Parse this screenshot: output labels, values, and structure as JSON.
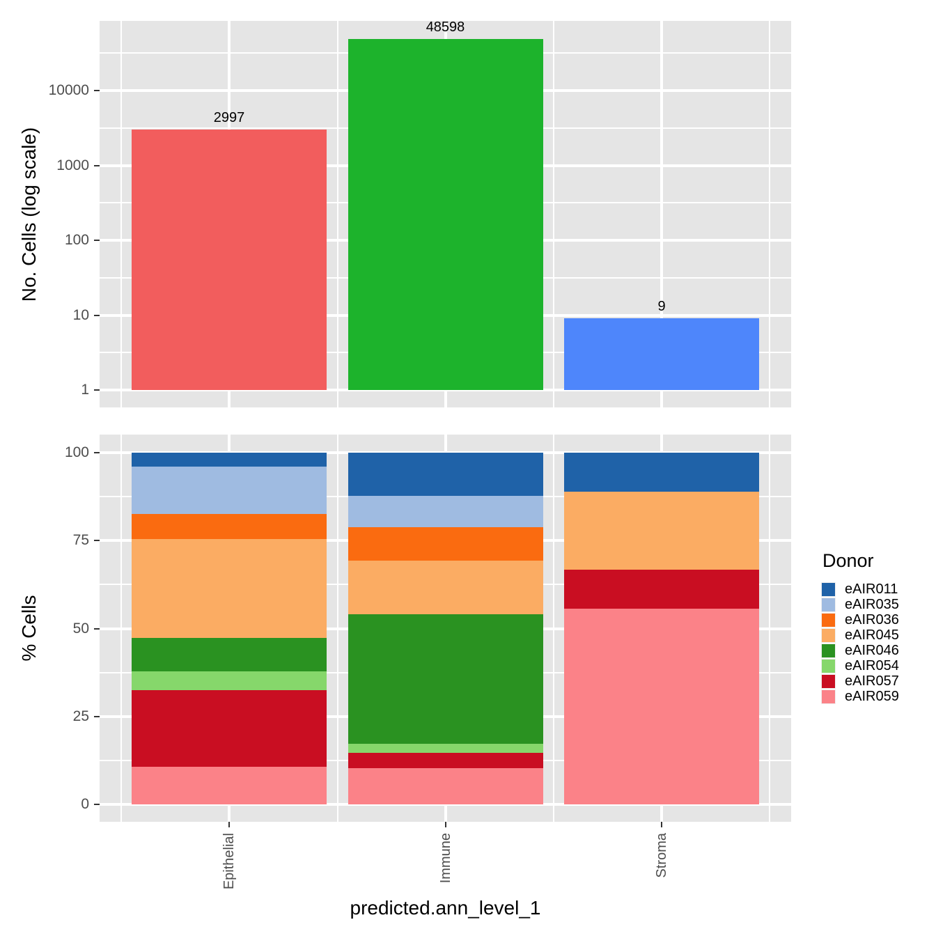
{
  "style": {
    "panel_background": "#E5E5E5",
    "gridline_color": "#FFFFFF",
    "tick_text_color": "#4D4D4D",
    "tick_mark_color": "#333333"
  },
  "chart_data": [
    {
      "type": "bar",
      "title": "",
      "xlabel": "",
      "ylabel": "No. Cells (log scale)",
      "scale": "log10",
      "grid": true,
      "categories": [
        "Epithelial",
        "Immune",
        "Stroma"
      ],
      "values": [
        2997,
        48598,
        9
      ],
      "value_labels": [
        "2997",
        "48598",
        "9"
      ],
      "bar_colors": [
        "#F25D5D",
        "#1DB32C",
        "#4E86FB"
      ],
      "yticks": [
        1,
        10,
        100,
        1000,
        10000
      ],
      "ylim": [
        1,
        60000
      ]
    },
    {
      "type": "stacked_bar_percent",
      "title": "",
      "xlabel": "predicted.ann_level_1",
      "ylabel": "% Cells",
      "grid": true,
      "legend_title": "Donor",
      "legend_position": "right",
      "categories": [
        "Epithelial",
        "Immune",
        "Stroma"
      ],
      "yticks": [
        0,
        25,
        50,
        75,
        100
      ],
      "ylim": [
        0,
        100
      ],
      "series": [
        {
          "name": "eAIR011",
          "color": "#1F62A8",
          "values": [
            4.0,
            12.3,
            11.1
          ]
        },
        {
          "name": "eAIR035",
          "color": "#9FBBE1",
          "values": [
            13.4,
            8.9,
            0
          ]
        },
        {
          "name": "eAIR036",
          "color": "#FA6B10",
          "values": [
            7.1,
            9.5,
            0
          ]
        },
        {
          "name": "eAIR045",
          "color": "#FBAC63",
          "values": [
            28.1,
            15.2,
            22.2
          ]
        },
        {
          "name": "eAIR046",
          "color": "#2A9221",
          "values": [
            9.5,
            36.8,
            0
          ]
        },
        {
          "name": "eAIR054",
          "color": "#86D76B",
          "values": [
            5.5,
            2.6,
            0
          ]
        },
        {
          "name": "eAIR057",
          "color": "#C90E22",
          "values": [
            21.8,
            4.5,
            11.1
          ]
        },
        {
          "name": "eAIR059",
          "color": "#FB8288",
          "values": [
            10.6,
            10.2,
            55.6
          ]
        }
      ]
    }
  ]
}
